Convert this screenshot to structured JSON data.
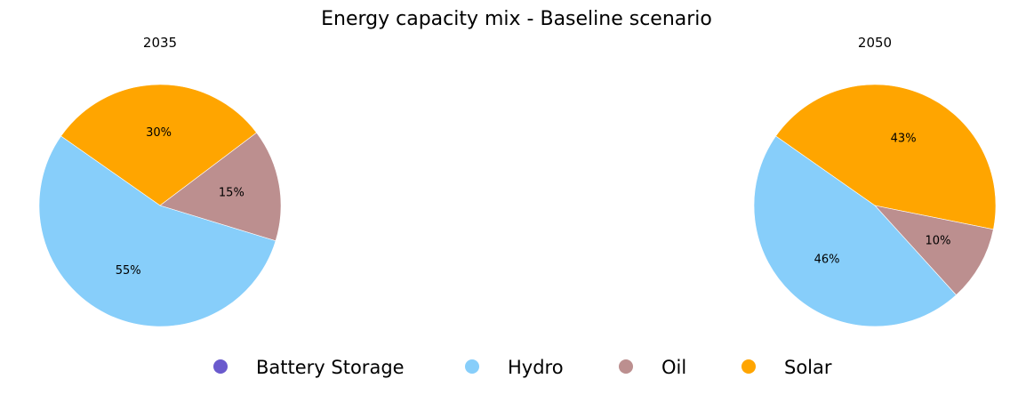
{
  "chart_data": {
    "type": "pie",
    "title": "Energy capacity mix - Baseline scenario",
    "legend": {
      "placement": "bottom",
      "entries": [
        {
          "name": "Battery Storage",
          "color": "#6a5acd"
        },
        {
          "name": "Hydro",
          "color": "#87cefa"
        },
        {
          "name": "Oil",
          "color": "#bc8f8f"
        },
        {
          "name": "Solar",
          "color": "#ffa500"
        }
      ]
    },
    "pies": [
      {
        "title": "2035",
        "start_angle_deg": 145,
        "slices": [
          {
            "name": "Hydro",
            "value": 55,
            "label": "55%",
            "color": "#87cefa"
          },
          {
            "name": "Oil",
            "value": 15,
            "label": "15%",
            "color": "#bc8f8f"
          },
          {
            "name": "Solar",
            "value": 30,
            "label": "30%",
            "color": "#ffa500"
          }
        ]
      },
      {
        "title": "2050",
        "start_angle_deg": 145,
        "slices": [
          {
            "name": "Hydro",
            "value": 46,
            "label": "46%",
            "color": "#87cefa"
          },
          {
            "name": "Oil",
            "value": 10,
            "label": "10%",
            "color": "#bc8f8f"
          },
          {
            "name": "Solar",
            "value": 43,
            "label": "43%",
            "color": "#ffa500"
          }
        ]
      }
    ]
  }
}
